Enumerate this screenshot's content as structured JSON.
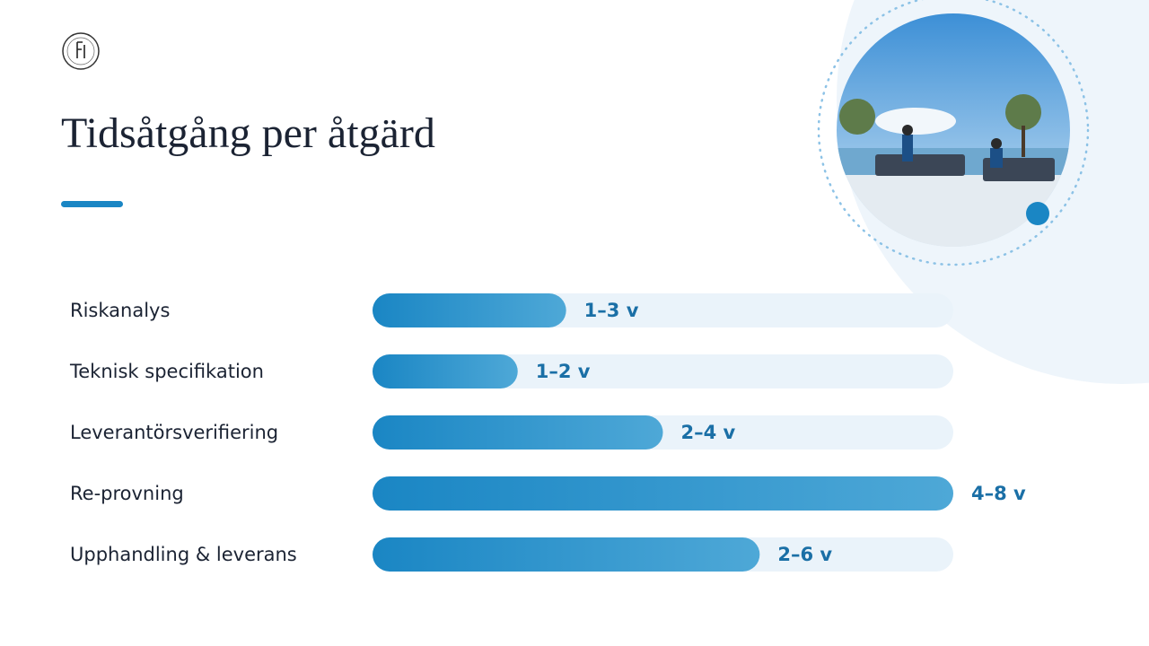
{
  "chart_data": {
    "type": "bar",
    "title": "Tidsåtgång per åtgärd",
    "categories": [
      "Riskanalys",
      "Teknisk specifikation",
      "Leverantörsverifiering",
      "Re-provning",
      "Upphandling & leverans"
    ],
    "values": [
      2,
      1.5,
      3,
      6,
      4
    ],
    "value_labels": [
      "1–3 v",
      "1–2 v",
      "2–4 v",
      "4–8 v",
      "2–6 v"
    ],
    "xlim": [
      0,
      6
    ],
    "color": "#1a86c4"
  }
}
